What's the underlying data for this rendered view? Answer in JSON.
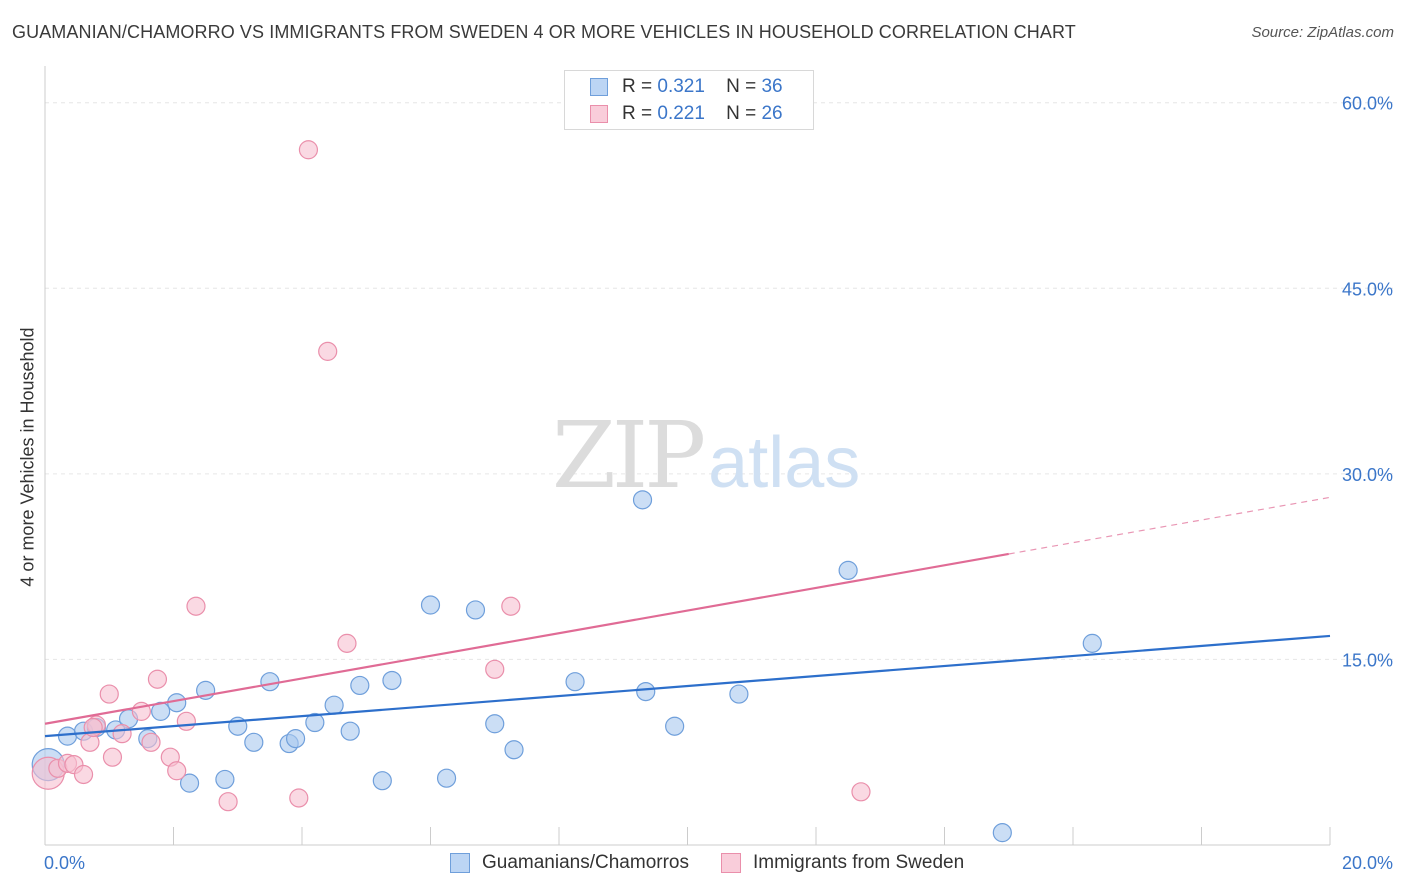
{
  "title": "GUAMANIAN/CHAMORRO VS IMMIGRANTS FROM SWEDEN 4 OR MORE VEHICLES IN HOUSEHOLD CORRELATION CHART",
  "source": "Source: ZipAtlas.com",
  "watermark": {
    "zip": "ZIP",
    "atlas": "atlas"
  },
  "legend": {
    "r_label": "R =",
    "n_label": "N =",
    "series": [
      {
        "r": "0.321",
        "n": "36"
      },
      {
        "r": "0.221",
        "n": "26"
      }
    ]
  },
  "bottom_legend": [
    "Guamanians/Chamorros",
    "Immigrants from Sweden"
  ],
  "colors": {
    "blue_fill": "#a9c8ef",
    "blue_stroke": "#6f9fdb",
    "blue_line": "#2d6fcb",
    "pink_fill": "#f6bfd0",
    "pink_stroke": "#ea8fab",
    "pink_line": "#e06b95",
    "tick_label": "#3b76c9",
    "grid": "#e6e6e6"
  },
  "chart_data": {
    "type": "scatter",
    "title": "GUAMANIAN/CHAMORRO VS IMMIGRANTS FROM SWEDEN 4 OR MORE VEHICLES IN HOUSEHOLD CORRELATION CHART",
    "xlabel": "",
    "ylabel": "4 or more Vehicles in Household",
    "xlim": [
      0,
      20
    ],
    "ylim": [
      0,
      62
    ],
    "x_tick_labels": [
      "0.0%",
      "20.0%"
    ],
    "y_ticks": [
      15,
      30,
      45,
      60
    ],
    "y_tick_labels": [
      "15.0%",
      "30.0%",
      "45.0%",
      "60.0%"
    ],
    "grid": true,
    "legend_position": "top-center",
    "series": [
      {
        "name": "Guamanians/Chamorros",
        "r": 0.321,
        "n": 36,
        "points": [
          [
            0.05,
            6.5,
            16
          ],
          [
            0.35,
            8.8,
            9
          ],
          [
            0.6,
            9.2,
            9
          ],
          [
            0.8,
            9.5,
            9
          ],
          [
            1.1,
            9.3,
            9
          ],
          [
            1.3,
            10.2,
            9
          ],
          [
            1.6,
            8.6,
            9
          ],
          [
            1.8,
            10.8,
            9
          ],
          [
            2.05,
            11.5,
            9
          ],
          [
            2.25,
            5.0,
            9
          ],
          [
            2.5,
            12.5,
            9
          ],
          [
            2.8,
            5.3,
            9
          ],
          [
            3.0,
            9.6,
            9
          ],
          [
            3.25,
            8.3,
            9
          ],
          [
            3.5,
            13.2,
            9
          ],
          [
            3.8,
            8.2,
            9
          ],
          [
            3.9,
            8.6,
            9
          ],
          [
            4.2,
            9.9,
            9
          ],
          [
            4.5,
            11.3,
            9
          ],
          [
            4.75,
            9.2,
            9
          ],
          [
            4.9,
            12.9,
            9
          ],
          [
            5.25,
            5.2,
            9
          ],
          [
            5.4,
            13.3,
            9
          ],
          [
            6.0,
            19.4,
            9
          ],
          [
            6.25,
            5.4,
            9
          ],
          [
            6.7,
            19.0,
            9
          ],
          [
            7.0,
            9.8,
            9
          ],
          [
            7.3,
            7.7,
            9
          ],
          [
            8.25,
            13.2,
            9
          ],
          [
            9.3,
            27.9,
            9
          ],
          [
            9.35,
            12.4,
            9
          ],
          [
            9.8,
            9.6,
            9
          ],
          [
            10.8,
            12.2,
            9
          ],
          [
            12.5,
            22.2,
            9
          ],
          [
            14.9,
            1.0,
            9
          ],
          [
            16.3,
            16.3,
            9
          ]
        ],
        "trend": {
          "x0": 0,
          "y0": 8.8,
          "x1": 20,
          "y1": 16.9,
          "solid_to": 20
        }
      },
      {
        "name": "Immigrants from Sweden",
        "r": 0.221,
        "n": 26,
        "points": [
          [
            0.05,
            5.8,
            16
          ],
          [
            0.2,
            6.2,
            9
          ],
          [
            0.35,
            6.6,
            9
          ],
          [
            0.45,
            6.5,
            9
          ],
          [
            0.6,
            5.7,
            9
          ],
          [
            0.7,
            8.3,
            9
          ],
          [
            0.8,
            9.7,
            9
          ],
          [
            1.0,
            12.2,
            9
          ],
          [
            1.05,
            7.1,
            9
          ],
          [
            1.2,
            9.0,
            9
          ],
          [
            1.5,
            10.8,
            9
          ],
          [
            1.65,
            8.3,
            9
          ],
          [
            1.75,
            13.4,
            9
          ],
          [
            1.95,
            7.1,
            9
          ],
          [
            2.05,
            6.0,
            9
          ],
          [
            2.2,
            10.0,
            9
          ],
          [
            2.35,
            19.3,
            9
          ],
          [
            2.85,
            3.5,
            9
          ],
          [
            3.95,
            3.8,
            9
          ],
          [
            4.1,
            56.2,
            9
          ],
          [
            4.4,
            39.9,
            9
          ],
          [
            4.7,
            16.3,
            9
          ],
          [
            7.0,
            14.2,
            9
          ],
          [
            7.25,
            19.3,
            9
          ],
          [
            12.7,
            4.3,
            9
          ],
          [
            0.75,
            9.5,
            9
          ]
        ],
        "trend": {
          "x0": 0,
          "y0": 9.8,
          "x1": 20,
          "y1": 28.1,
          "solid_to": 15
        }
      }
    ]
  }
}
